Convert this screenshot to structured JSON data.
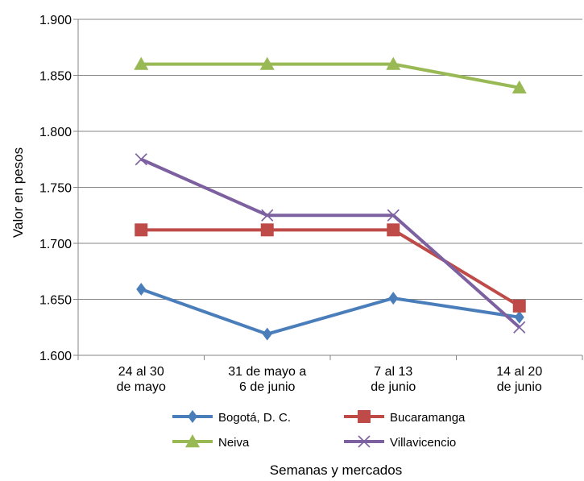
{
  "chart_data": {
    "type": "line",
    "categories": [
      [
        "24 al 30",
        "de mayo"
      ],
      [
        "31 de mayo a",
        "6 de junio"
      ],
      [
        "7 al 13",
        "de junio"
      ],
      [
        "14 al 20",
        "de junio"
      ]
    ],
    "series": [
      {
        "name": "Bogotá, D. C.",
        "values": [
          1659,
          1619,
          1651,
          1634
        ],
        "color": "#4a7ebb",
        "marker": "diamond"
      },
      {
        "name": "Bucaramanga",
        "values": [
          1712,
          1712,
          1712,
          1644
        ],
        "color": "#be4b48",
        "marker": "square"
      },
      {
        "name": "Neiva",
        "values": [
          1860,
          1860,
          1860,
          1839
        ],
        "color": "#98b954",
        "marker": "triangle"
      },
      {
        "name": "Villavicencio",
        "values": [
          1775,
          1725,
          1725,
          1625
        ],
        "color": "#7d60a0",
        "marker": "x"
      }
    ],
    "ylim": [
      1600,
      1900
    ],
    "yticks": [
      "1.600",
      "1.650",
      "1.700",
      "1.750",
      "1.800",
      "1.850",
      "1.900"
    ],
    "ylabel": "Valor en pesos",
    "xlabel": "Semanas y mercados",
    "grid": true,
    "legend": "bottom"
  }
}
